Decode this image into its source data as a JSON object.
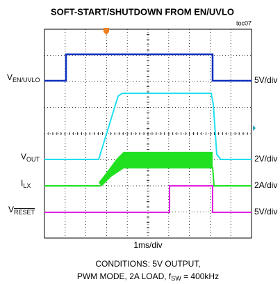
{
  "title": "SOFT-START/SHUTDOWN FROM EN/UVLO",
  "tag": "toc07",
  "channels": [
    {
      "name": "V",
      "sub": "EN/UVLO",
      "scale": "5V/div"
    },
    {
      "name": "V",
      "sub": "OUT",
      "scale": "2V/div"
    },
    {
      "name": "I",
      "sub": "LX",
      "scale": "2A/div"
    },
    {
      "name": "V",
      "sub": "RESET",
      "scale": "5V/div"
    }
  ],
  "time_scale": "1ms/div",
  "conditions": {
    "line1": "CONDITIONS: 5V OUTPUT,",
    "line2": "PWM MODE, 2A LOAD, f",
    "line2_sub": "SW",
    "line2_tail": " = 400kHz"
  }
}
